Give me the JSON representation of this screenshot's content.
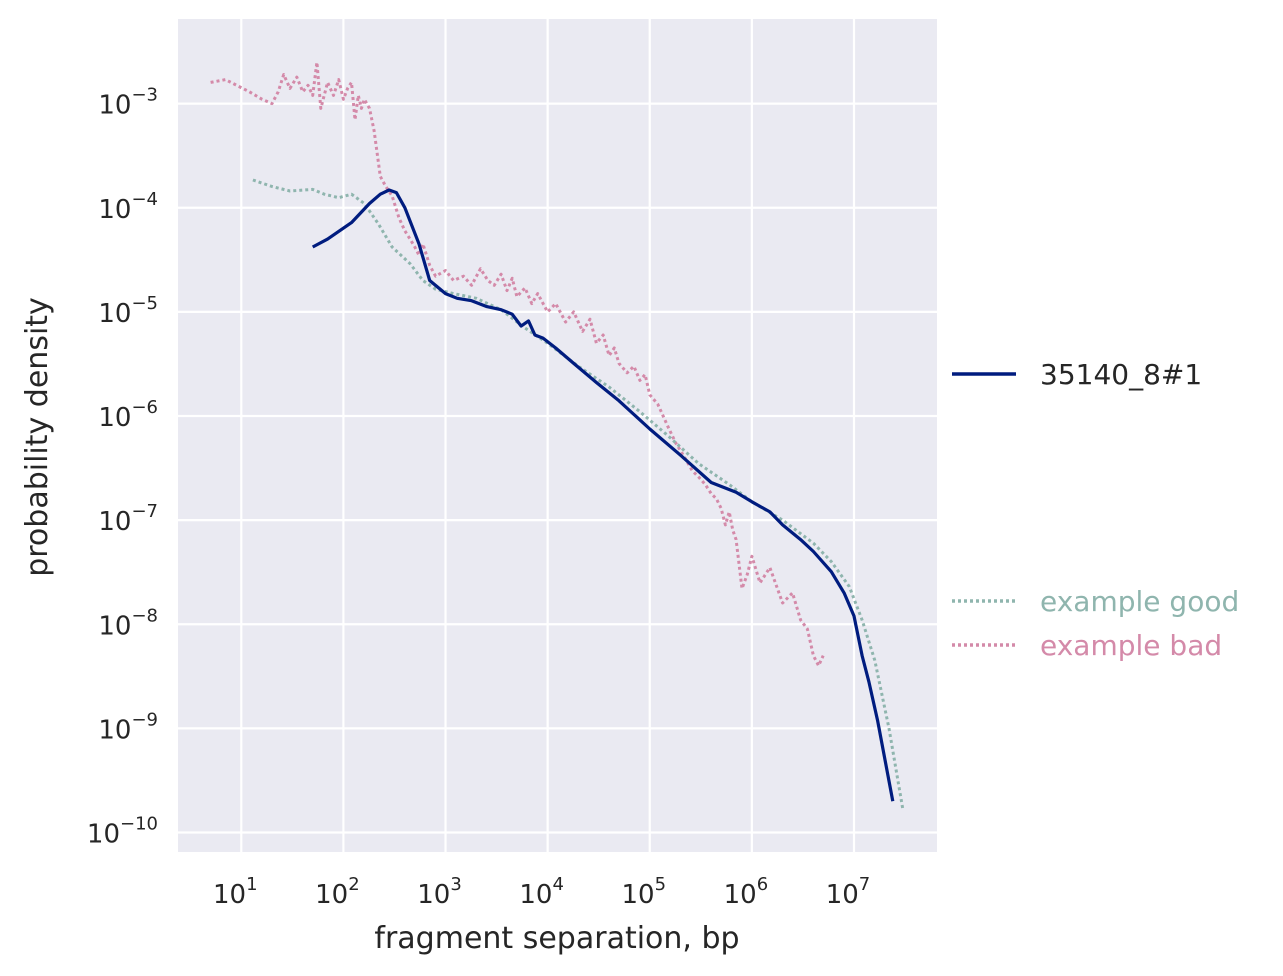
{
  "chart_data": {
    "type": "line",
    "title": "",
    "xlabel": "fragment separation, bp",
    "ylabel": "probability density",
    "x_scale": "log",
    "y_scale": "log",
    "xlim": [
      2.4,
      65000000
    ],
    "ylim": [
      6.5e-11,
      0.0065
    ],
    "grid": true,
    "xticks": [
      {
        "value": 10,
        "base": "10",
        "exp": "1"
      },
      {
        "value": 100,
        "base": "10",
        "exp": "2"
      },
      {
        "value": 1000,
        "base": "10",
        "exp": "3"
      },
      {
        "value": 10000,
        "base": "10",
        "exp": "4"
      },
      {
        "value": 100000,
        "base": "10",
        "exp": "5"
      },
      {
        "value": 1000000,
        "base": "10",
        "exp": "6"
      },
      {
        "value": 10000000,
        "base": "10",
        "exp": "7"
      }
    ],
    "yticks": [
      {
        "value": 0.001,
        "base": "10",
        "exp": "−3"
      },
      {
        "value": 0.0001,
        "base": "10",
        "exp": "−4"
      },
      {
        "value": 1e-05,
        "base": "10",
        "exp": "−5"
      },
      {
        "value": 1e-06,
        "base": "10",
        "exp": "−6"
      },
      {
        "value": 1e-07,
        "base": "10",
        "exp": "−7"
      },
      {
        "value": 1e-08,
        "base": "10",
        "exp": "−8"
      },
      {
        "value": 1e-09,
        "base": "10",
        "exp": "−9"
      },
      {
        "value": 1e-10,
        "base": "10",
        "exp": "−10"
      }
    ],
    "legend": [
      {
        "name": "35140_8#1",
        "placement": "right",
        "color": "#001c7f"
      },
      {
        "name": "example good",
        "placement": "right-lower",
        "color": "#8fb5ae"
      },
      {
        "name": "example bad",
        "placement": "right-lower",
        "color": "#d48aa9"
      }
    ],
    "series": [
      {
        "name": "35140_8#1",
        "style": "solid",
        "color": "#001c7f",
        "x": [
          50,
          70,
          120,
          180,
          230,
          280,
          330,
          400,
          550,
          700,
          1000,
          1300,
          1800,
          2500,
          3500,
          4500,
          5500,
          6500,
          7500,
          9000,
          12000,
          18000,
          30000,
          50000,
          100000,
          200000,
          400000,
          700000,
          1000000,
          1500000,
          2000000,
          3000000,
          4000000,
          6000000,
          8000000,
          10000000,
          12000000,
          14000000,
          17000000,
          24000000
        ],
        "y": [
          4.2e-05,
          5e-05,
          7.2e-05,
          0.00011,
          0.000135,
          0.000148,
          0.00014,
          0.0001,
          4.5e-05,
          2e-05,
          1.5e-05,
          1.35e-05,
          1.28e-05,
          1.13e-05,
          1.05e-05,
          9.5e-06,
          7.3e-06,
          8.2e-06,
          6e-06,
          5.6e-06,
          4.5e-06,
          3.2e-06,
          2.1e-06,
          1.4e-06,
          7.5e-07,
          4.2e-07,
          2.3e-07,
          1.85e-07,
          1.5e-07,
          1.2e-07,
          9e-08,
          6.5e-08,
          5e-08,
          3.2e-08,
          2e-08,
          1.2e-08,
          5e-09,
          2.8e-09,
          1.2e-09,
          2e-10
        ]
      },
      {
        "name": "example good",
        "style": "dotted",
        "color": "#8fb5ae",
        "x": [
          13,
          20,
          30,
          50,
          65,
          90,
          120,
          160,
          220,
          300,
          450,
          600,
          800,
          1200,
          2000,
          3500,
          6000,
          10000,
          20000,
          40000,
          80000,
          150000,
          300000,
          600000,
          1000000,
          2000000,
          4000000,
          6000000,
          9000000,
          12000000,
          16000000,
          22000000,
          30000000
        ],
        "y": [
          0.000185,
          0.00016,
          0.000145,
          0.00015,
          0.000135,
          0.000125,
          0.000135,
          0.00011,
          7e-05,
          4.2e-05,
          2.9e-05,
          2e-05,
          1.65e-05,
          1.5e-05,
          1.35e-05,
          1.05e-05,
          7e-06,
          5e-06,
          3e-06,
          1.9e-06,
          1.1e-06,
          6.5e-07,
          3.5e-07,
          2.2e-07,
          1.5e-07,
          1e-07,
          6e-08,
          4e-08,
          2.3e-08,
          1.1e-08,
          4.5e-09,
          1e-09,
          1.7e-10
        ]
      },
      {
        "name": "example bad",
        "style": "dotted",
        "color": "#d48aa9",
        "x": [
          5,
          7,
          9,
          12,
          16,
          20,
          23,
          26,
          30,
          35,
          40,
          45,
          50,
          55,
          60,
          70,
          80,
          90,
          100,
          110,
          120,
          130,
          140,
          150,
          160,
          180,
          200,
          230,
          260,
          300,
          350,
          400,
          450,
          500,
          550,
          600,
          700,
          800,
          1000,
          1200,
          1500,
          1800,
          2200,
          2600,
          3000,
          3500,
          4000,
          4500,
          5000,
          6000,
          7000,
          8000,
          10000,
          12000,
          15000,
          18000,
          22000,
          26000,
          30000,
          35000,
          40000,
          45000,
          50000,
          60000,
          70000,
          80000,
          90000,
          100000,
          120000,
          150000,
          180000,
          220000,
          260000,
          300000,
          350000,
          400000,
          450000,
          500000,
          550000,
          600000,
          650000,
          700000,
          800000,
          900000,
          1000000,
          1200000,
          1500000,
          2000000,
          2500000,
          3000000,
          3500000,
          4000000,
          4500000,
          5000000
        ],
        "y": [
          0.0016,
          0.0017,
          0.0015,
          0.0013,
          0.0011,
          0.001,
          0.0013,
          0.0019,
          0.0014,
          0.0018,
          0.0013,
          0.0015,
          0.0012,
          0.0025,
          0.0009,
          0.0016,
          0.0012,
          0.0017,
          0.0011,
          0.0014,
          0.0016,
          0.0007,
          0.0012,
          0.0009,
          0.0011,
          0.0009,
          0.00055,
          0.0002,
          0.00016,
          0.00013,
          8e-05,
          6e-05,
          5e-05,
          4.2e-05,
          3.5e-05,
          4.5e-05,
          2.8e-05,
          2.2e-05,
          2.5e-05,
          2e-05,
          2.2e-05,
          1.8e-05,
          2.6e-05,
          2e-05,
          1.8e-05,
          2.3e-05,
          1.6e-05,
          2.1e-05,
          1.4e-05,
          1.7e-05,
          1.2e-05,
          1.5e-05,
          1e-05,
          1.2e-05,
          8e-06,
          1e-05,
          6.5e-06,
          8.5e-06,
          5e-06,
          6e-06,
          3.8e-06,
          4.5e-06,
          3.2e-06,
          2.6e-06,
          3e-06,
          2.2e-06,
          2.5e-06,
          1.6e-06,
          1.3e-06,
          8e-07,
          5.5e-07,
          4e-07,
          3e-07,
          2.6e-07,
          2.2e-07,
          1.8e-07,
          1.6e-07,
          1.3e-07,
          9e-08,
          1.2e-07,
          8e-08,
          6.5e-08,
          2.2e-08,
          3e-08,
          4.5e-08,
          2.5e-08,
          3.5e-08,
          1.6e-08,
          2e-08,
          1.1e-08,
          9e-09,
          5e-09,
          4e-09,
          5e-09
        ]
      }
    ]
  }
}
